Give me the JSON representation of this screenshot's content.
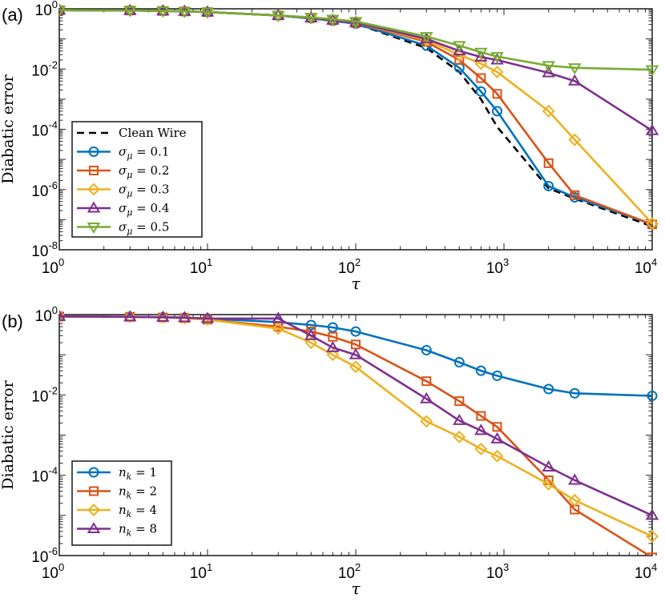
{
  "chart_data": [
    {
      "type": "line",
      "panel_label": "(a)",
      "xscale": "log",
      "yscale": "log",
      "xlim": [
        1,
        10000
      ],
      "ylim": [
        1e-08,
        1
      ],
      "xlabel": "τ",
      "ylabel": "Diabatic error",
      "x_tick_labels": [
        "10^0",
        "10^1",
        "10^2",
        "10^3",
        "10^4"
      ],
      "y_tick_labels": [
        "10^-8",
        "10^-6",
        "10^-4",
        "10^-2",
        "10^0"
      ],
      "legend_position": "bottom-left",
      "x": [
        1,
        3,
        5,
        7,
        10,
        30,
        50,
        70,
        100,
        300,
        500,
        700,
        900,
        2000,
        3000,
        10000
      ],
      "series": [
        {
          "name": "Clean Wire",
          "label_main": "Clean Wire",
          "color": "#000000",
          "dash": true,
          "marker": "none",
          "values": [
            0.9,
            0.88,
            0.85,
            0.82,
            0.78,
            0.6,
            0.48,
            0.4,
            0.32,
            0.05,
            0.008,
            0.001,
            0.00012,
            1.1e-06,
            5e-07,
            6e-08
          ]
        },
        {
          "name": "σ_μ = 0.1",
          "label_main": "σ",
          "label_sub": "μ",
          "label_tail": " = 0.1",
          "color": "#0072BD",
          "marker": "circle",
          "values": [
            0.9,
            0.88,
            0.85,
            0.82,
            0.78,
            0.6,
            0.48,
            0.4,
            0.32,
            0.06,
            0.011,
            0.0018,
            0.0004,
            1.3e-06,
            5.5e-07,
            7e-08
          ]
        },
        {
          "name": "σ_μ = 0.2",
          "label_main": "σ",
          "label_sub": "μ",
          "label_tail": " = 0.2",
          "color": "#D95319",
          "marker": "square",
          "values": [
            0.9,
            0.88,
            0.85,
            0.82,
            0.78,
            0.6,
            0.5,
            0.42,
            0.34,
            0.08,
            0.02,
            0.005,
            0.0015,
            7.5e-06,
            6.5e-07,
            7e-08
          ]
        },
        {
          "name": "σ_μ = 0.3",
          "label_main": "σ",
          "label_sub": "μ",
          "label_tail": " = 0.3",
          "color": "#EDB120",
          "marker": "diamond",
          "values": [
            0.9,
            0.88,
            0.85,
            0.82,
            0.78,
            0.6,
            0.5,
            0.42,
            0.35,
            0.09,
            0.03,
            0.015,
            0.008,
            0.0004,
            4.5e-05,
            7.5e-08
          ]
        },
        {
          "name": "σ_μ = 0.4",
          "label_main": "σ",
          "label_sub": "μ",
          "label_tail": " = 0.4",
          "color": "#7E2F8E",
          "marker": "triangle-up",
          "values": [
            0.9,
            0.88,
            0.85,
            0.82,
            0.78,
            0.6,
            0.5,
            0.42,
            0.35,
            0.1,
            0.04,
            0.025,
            0.02,
            0.0075,
            0.004,
            9e-05
          ]
        },
        {
          "name": "σ_μ = 0.5",
          "label_main": "σ",
          "label_sub": "μ",
          "label_tail": " = 0.5",
          "color": "#77AC30",
          "marker": "triangle-down",
          "values": [
            0.9,
            0.88,
            0.85,
            0.82,
            0.78,
            0.6,
            0.52,
            0.45,
            0.38,
            0.12,
            0.06,
            0.036,
            0.026,
            0.013,
            0.011,
            0.0095
          ]
        }
      ]
    },
    {
      "type": "line",
      "panel_label": "(b)",
      "xscale": "log",
      "yscale": "log",
      "xlim": [
        1,
        10000
      ],
      "ylim": [
        1e-06,
        1
      ],
      "xlabel": "τ",
      "ylabel": "Diabatic error",
      "x_tick_labels": [
        "10^0",
        "10^1",
        "10^2",
        "10^3",
        "10^4"
      ],
      "y_tick_labels": [
        "10^-6",
        "10^-4",
        "10^-2",
        "10^0"
      ],
      "legend_position": "bottom-left",
      "x": [
        1,
        3,
        5,
        7,
        10,
        30,
        50,
        70,
        100,
        300,
        500,
        700,
        900,
        2000,
        3000,
        10000
      ],
      "series": [
        {
          "name": "n_k = 1",
          "label_main": "n",
          "label_sub": "k",
          "label_tail": " = 1",
          "color": "#0072BD",
          "marker": "circle",
          "values": [
            0.9,
            0.88,
            0.86,
            0.84,
            0.8,
            0.65,
            0.55,
            0.48,
            0.38,
            0.13,
            0.065,
            0.04,
            0.03,
            0.014,
            0.011,
            0.0095
          ]
        },
        {
          "name": "n_k = 2",
          "label_main": "n",
          "label_sub": "k",
          "label_tail": " = 2",
          "color": "#D95319",
          "marker": "square",
          "values": [
            0.9,
            0.88,
            0.85,
            0.82,
            0.75,
            0.5,
            0.38,
            0.28,
            0.18,
            0.022,
            0.007,
            0.003,
            0.0016,
            7.5e-05,
            1.4e-05,
            9e-07
          ]
        },
        {
          "name": "n_k = 4",
          "label_main": "n",
          "label_sub": "k",
          "label_tail": " = 4",
          "color": "#EDB120",
          "marker": "diamond",
          "values": [
            0.9,
            0.88,
            0.85,
            0.82,
            0.75,
            0.45,
            0.2,
            0.1,
            0.05,
            0.0022,
            0.0009,
            0.00045,
            0.0003,
            6e-05,
            2.4e-05,
            3e-06
          ]
        },
        {
          "name": "n_k = 8",
          "label_main": "n",
          "label_sub": "k",
          "label_tail": " = 8",
          "color": "#7E2F8E",
          "marker": "triangle-up",
          "values": [
            0.9,
            0.88,
            0.86,
            0.84,
            0.8,
            0.8,
            0.3,
            0.15,
            0.1,
            0.008,
            0.0023,
            0.0013,
            0.0008,
            0.00016,
            7.5e-05,
            1e-05
          ]
        }
      ]
    }
  ]
}
